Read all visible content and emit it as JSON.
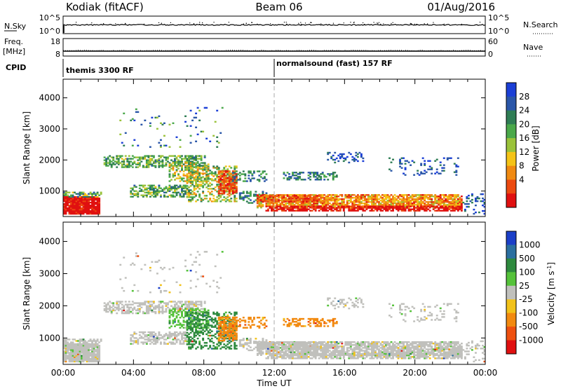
{
  "header": {
    "site": "Kodiak (fitACF)",
    "beam": "Beam 06",
    "date": "01/Aug/2016"
  },
  "panels": {
    "nsky": {
      "left_label": "N.Sky",
      "left_ticks": [
        "10^5",
        "10^0"
      ],
      "right_label": "N.Search",
      "right_ticks": [
        "10^5",
        "10^0"
      ]
    },
    "freq": {
      "left_label_1": "Freq.",
      "left_label_2": "[MHz]",
      "left_ticks": [
        "18",
        "8"
      ],
      "right_label": "Nave",
      "right_ticks": [
        "60",
        "0"
      ]
    },
    "cpid": {
      "label": "CPID",
      "modes": [
        "themis 3300 RF",
        "normalsound (fast) 157 RF"
      ]
    }
  },
  "chart_data": [
    {
      "type": "heatmap",
      "title": "",
      "ylabel": "Slant Range [km]",
      "ylim": [
        180,
        4600
      ],
      "yticks": [
        "1000",
        "2000",
        "3000",
        "4000"
      ],
      "xlim": [
        0,
        24
      ],
      "xticks": [
        "00:00",
        "04:00",
        "08:00",
        "12:00",
        "16:00",
        "20:00",
        "00:00"
      ],
      "colorbar": {
        "label": "Power [dB]",
        "ticks": [
          "4",
          "8",
          "12",
          "16",
          "20",
          "24",
          "28"
        ],
        "colors": [
          "#1b3fd6",
          "#2a56a8",
          "#2f7d55",
          "#4aa84a",
          "#9ac23a",
          "#f4c317",
          "#f08a12",
          "#ec4a10",
          "#e01010"
        ]
      }
    },
    {
      "type": "heatmap",
      "title": "",
      "ylabel": "Slant Range [km]",
      "ylim": [
        180,
        4600
      ],
      "yticks": [
        "1000",
        "2000",
        "3000",
        "4000"
      ],
      "xlim": [
        0,
        24
      ],
      "xticks": [
        "00:00",
        "04:00",
        "08:00",
        "12:00",
        "16:00",
        "20:00",
        "00:00"
      ],
      "xlabel": "Time UT",
      "colorbar": {
        "label": "Velocity [m s",
        "label_sup": "-1",
        "label_end": "]",
        "ticks": [
          "1000",
          "500",
          "100",
          "25",
          "-25",
          "-100",
          "-500",
          "-1000"
        ],
        "colors": [
          "#1b3fc8",
          "#2b6fa0",
          "#2e8a3e",
          "#55c23a",
          "#c0c0bc",
          "#f2c21a",
          "#f28a10",
          "#ee5010",
          "#e01010"
        ]
      }
    }
  ]
}
